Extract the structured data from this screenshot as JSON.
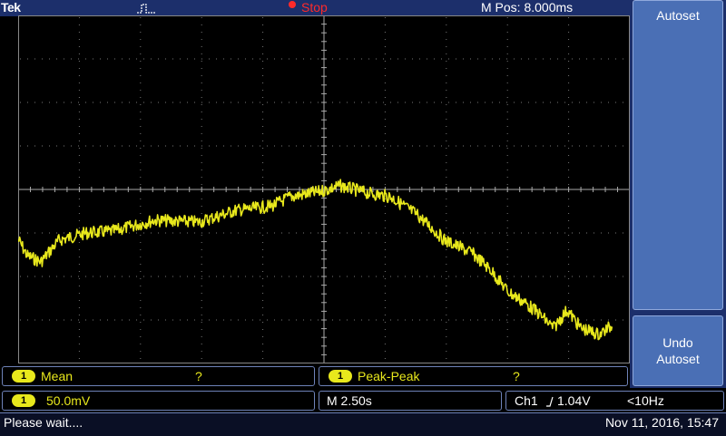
{
  "header": {
    "brand": "Tek",
    "trigger_icon": "pulse-trigger-icon",
    "run_state": "Stop",
    "run_state_color": "#ff2a2a",
    "m_pos": "M Pos: 8.000ms"
  },
  "sidebar": {
    "autoset_label": "Autoset",
    "undo_line1": "Undo",
    "undo_line2": "Autoset"
  },
  "measurements": [
    {
      "channel": "1",
      "label": "Mean",
      "value": "?"
    },
    {
      "channel": "1",
      "label": "Peak-Peak",
      "value": "?"
    }
  ],
  "status": {
    "channel": "1",
    "volts_div": "50.0mV",
    "timebase": "M 2.50s",
    "trigger_source": "Ch1",
    "trigger_slope_icon": "rising-edge-icon",
    "trigger_level": "1.04V",
    "frequency": "<10Hz"
  },
  "footer": {
    "message": "Please wait....",
    "datetime": "Nov 11, 2016, 15:47"
  },
  "colors": {
    "trace": "#e8e81c",
    "panel": "#1c2f6b",
    "softkey": "#4a6fb5"
  }
}
